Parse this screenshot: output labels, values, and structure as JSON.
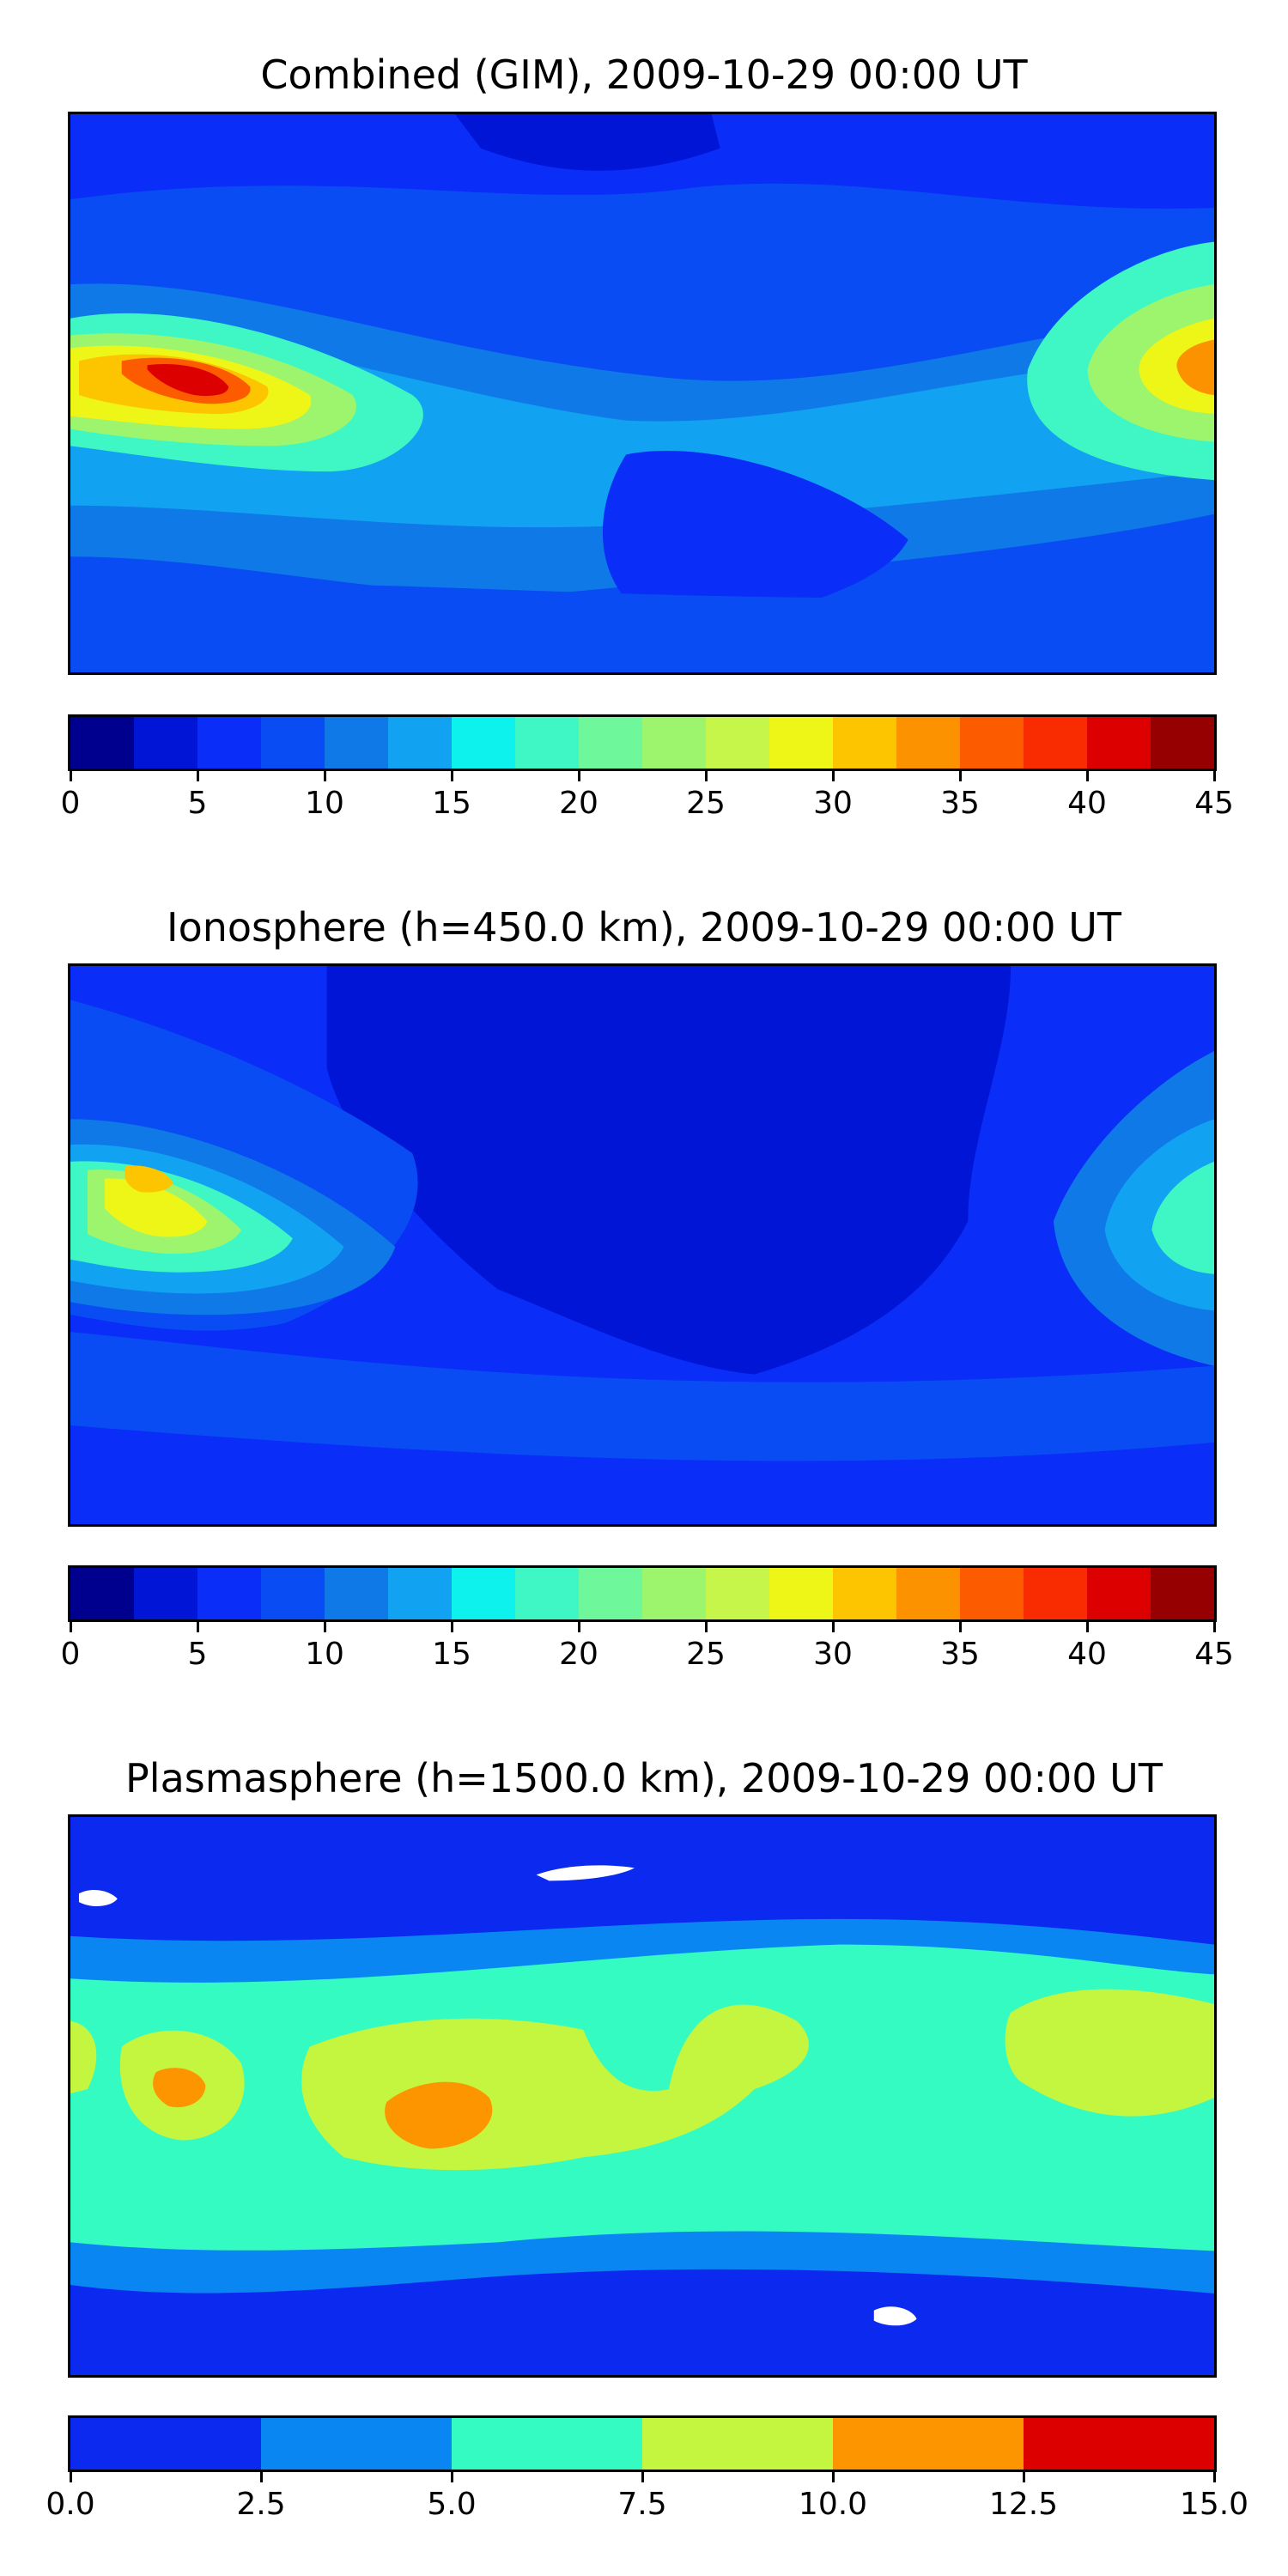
{
  "panels": [
    {
      "id": "combined",
      "title": "Combined (GIM), 2009-10-29 00:00 UT",
      "colorbar": {
        "min": 0,
        "max": 45,
        "colors": [
          "#00008f",
          "#0015d6",
          "#0a2df8",
          "#0a4cf3",
          "#0f79e8",
          "#12a2f2",
          "#0ef2ee",
          "#3ef7c4",
          "#6ff79c",
          "#9cf56d",
          "#c7f64a",
          "#eef617",
          "#fdc500",
          "#fd9200",
          "#fd5b00",
          "#f82c00",
          "#dc0000",
          "#960000"
        ],
        "ticks": [
          "0",
          "5",
          "10",
          "15",
          "20",
          "25",
          "30",
          "35",
          "40",
          "45"
        ]
      }
    },
    {
      "id": "ionosphere",
      "title": "Ionosphere  (h=450.0 km), 2009-10-29 00:00 UT",
      "colorbar": {
        "min": 0,
        "max": 45,
        "colors": [
          "#00008f",
          "#0015d6",
          "#0a2df8",
          "#0a4cf3",
          "#0f79e8",
          "#12a2f2",
          "#0ef2ee",
          "#3ef7c4",
          "#6ff79c",
          "#9cf56d",
          "#c7f64a",
          "#eef617",
          "#fdc500",
          "#fd9200",
          "#fd5b00",
          "#f82c00",
          "#dc0000",
          "#960000"
        ],
        "ticks": [
          "0",
          "5",
          "10",
          "15",
          "20",
          "25",
          "30",
          "35",
          "40",
          "45"
        ]
      }
    },
    {
      "id": "plasmasphere",
      "title": "Plasmasphere (h=1500.0 km), 2009-10-29 00:00 UT",
      "colorbar": {
        "min": 0,
        "max": 15,
        "colors": [
          "#0c2aef",
          "#0a86f3",
          "#34fbc2",
          "#c4f63f",
          "#fd9500",
          "#dc0000"
        ],
        "ticks": [
          "0.0",
          "2.5",
          "5.0",
          "7.5",
          "10.0",
          "12.5",
          "15.0"
        ]
      }
    }
  ]
}
